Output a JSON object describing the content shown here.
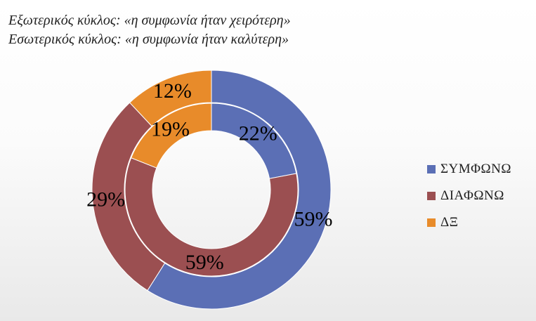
{
  "chart_data": {
    "type": "donut",
    "title_lines": [
      "Εξωτερικός κύκλος: «η συμφωνία ήταν χειρότερη»",
      "Εσωτερικός κύκλος: «η συμφωνία ήταν καλύτερη»"
    ],
    "categories": [
      "ΣΥΜΦΩΝΩ",
      "ΔΙΑΦΩΝΩ",
      "ΔΞ"
    ],
    "colors": [
      "#5b6fb5",
      "#9b4f51",
      "#e88b2a"
    ],
    "series": [
      {
        "ring": "outer",
        "values": [
          59,
          29,
          12
        ],
        "labels": [
          "59%",
          "29%",
          "12%"
        ]
      },
      {
        "ring": "inner",
        "values": [
          22,
          59,
          19
        ],
        "labels": [
          "22%",
          "59%",
          "19%"
        ]
      }
    ],
    "legend": "right"
  }
}
